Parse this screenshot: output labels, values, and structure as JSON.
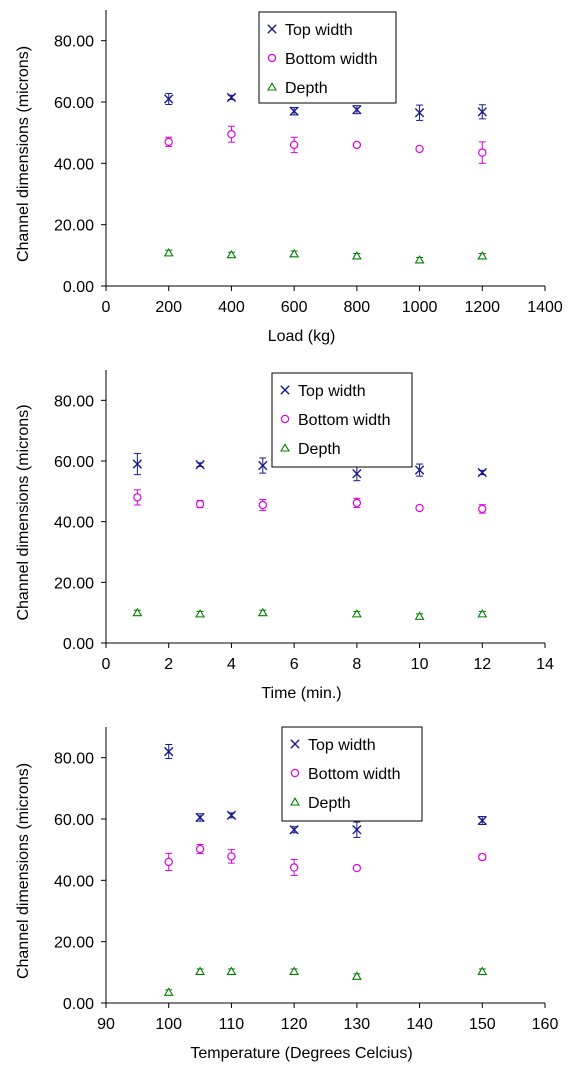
{
  "colors": {
    "top": "#1a1a8c",
    "bottom": "#e000e0",
    "depth": "#008000",
    "axis": "#000000"
  },
  "chart_data": [
    {
      "type": "scatter",
      "xlabel": "Load (kg)",
      "ylabel": "Channel dimensions (microns)",
      "xlim": [
        0,
        1400
      ],
      "ylim": [
        0,
        90
      ],
      "xticks": [
        0,
        200,
        400,
        600,
        800,
        1000,
        1200,
        1400
      ],
      "xtick_labels": [
        "0",
        "200",
        "400",
        "600",
        "800",
        "1000",
        "1200",
        "1400"
      ],
      "yticks": [
        0,
        20,
        40,
        60,
        80
      ],
      "ytick_labels": [
        "0.00",
        "20.00",
        "40.00",
        "60.00",
        "80.00"
      ],
      "legend_position": "top-right",
      "series": [
        {
          "name": "Top width",
          "marker": "x",
          "colorKey": "top",
          "x": [
            200,
            400,
            600,
            800,
            1000,
            1200
          ],
          "y": [
            61.0,
            61.5,
            57.0,
            57.5,
            56.5,
            56.8
          ],
          "err": [
            1.8,
            0.7,
            1.2,
            1.3,
            2.5,
            2.3
          ]
        },
        {
          "name": "Bottom width",
          "marker": "o",
          "colorKey": "bottom",
          "x": [
            200,
            400,
            600,
            800,
            1000,
            1200
          ],
          "y": [
            47.0,
            49.5,
            46.0,
            46.0,
            44.7,
            43.5
          ],
          "err": [
            1.5,
            2.6,
            2.5,
            0.6,
            0.4,
            3.5
          ]
        },
        {
          "name": "Depth",
          "marker": "triangle",
          "colorKey": "depth",
          "x": [
            200,
            400,
            600,
            800,
            1000,
            1200
          ],
          "y": [
            10.8,
            10.2,
            10.5,
            9.8,
            8.5,
            9.8
          ],
          "err": [
            0.9,
            0.8,
            0.9,
            0.8,
            0.8,
            0.8
          ]
        }
      ]
    },
    {
      "type": "scatter",
      "xlabel": "Time (min.)",
      "ylabel": "Channel dimensions (microns)",
      "xlim": [
        0,
        14
      ],
      "ylim": [
        0,
        90
      ],
      "xticks": [
        0,
        2,
        4,
        6,
        8,
        10,
        12,
        14
      ],
      "xtick_labels": [
        "0",
        "2",
        "4",
        "6",
        "8",
        "10",
        "12",
        "14"
      ],
      "yticks": [
        0,
        20,
        40,
        60,
        80
      ],
      "ytick_labels": [
        "0.00",
        "20.00",
        "40.00",
        "60.00",
        "80.00"
      ],
      "legend_position": "top-right",
      "series": [
        {
          "name": "Top width",
          "marker": "x",
          "colorKey": "top",
          "x": [
            1,
            3,
            5,
            8,
            10,
            12
          ],
          "y": [
            59.0,
            58.8,
            58.5,
            55.8,
            57.0,
            56.2
          ],
          "err": [
            3.5,
            0.6,
            2.5,
            2.3,
            2.0,
            0.7
          ]
        },
        {
          "name": "Bottom width",
          "marker": "o",
          "colorKey": "bottom",
          "x": [
            1,
            3,
            5,
            8,
            10,
            12
          ],
          "y": [
            48.0,
            45.8,
            45.5,
            46.2,
            44.5,
            44.2
          ],
          "err": [
            2.5,
            1.2,
            1.8,
            1.5,
            0.4,
            1.4
          ]
        },
        {
          "name": "Depth",
          "marker": "triangle",
          "colorKey": "depth",
          "x": [
            1,
            3,
            5,
            8,
            10,
            12
          ],
          "y": [
            10.0,
            9.6,
            10.0,
            9.6,
            8.8,
            9.6
          ],
          "err": [
            0.8,
            0.8,
            0.8,
            0.8,
            0.8,
            0.8
          ]
        }
      ]
    },
    {
      "type": "scatter",
      "xlabel": "Temperature (Degrees Celcius)",
      "ylabel": "Channel dimensions (microns)",
      "xlim": [
        90,
        160
      ],
      "ylim": [
        0,
        90
      ],
      "xticks": [
        90,
        100,
        110,
        120,
        130,
        140,
        150,
        160
      ],
      "xtick_labels": [
        "90",
        "100",
        "110",
        "120",
        "130",
        "140",
        "150",
        "160"
      ],
      "yticks": [
        0,
        20,
        40,
        60,
        80
      ],
      "ytick_labels": [
        "0.00",
        "20.00",
        "40.00",
        "60.00",
        "80.00"
      ],
      "legend_position": "top-right",
      "series": [
        {
          "name": "Top width",
          "marker": "x",
          "colorKey": "top",
          "x": [
            100,
            105,
            110,
            120,
            130,
            150
          ],
          "y": [
            82.0,
            60.5,
            61.2,
            56.5,
            56.5,
            59.5
          ],
          "err": [
            2.3,
            1.2,
            0.8,
            1.0,
            2.5,
            1.3
          ]
        },
        {
          "name": "Bottom width",
          "marker": "o",
          "colorKey": "bottom",
          "x": [
            100,
            105,
            110,
            120,
            130,
            150
          ],
          "y": [
            46.0,
            50.2,
            47.8,
            44.2,
            44.0,
            47.6
          ],
          "err": [
            2.8,
            1.5,
            2.2,
            2.6,
            0.4,
            0.9
          ]
        },
        {
          "name": "Depth",
          "marker": "triangle",
          "colorKey": "depth",
          "x": [
            100,
            105,
            110,
            120,
            130,
            150
          ],
          "y": [
            3.5,
            10.3,
            10.3,
            10.3,
            8.7,
            10.3
          ],
          "err": [
            0.8,
            0.8,
            0.8,
            0.8,
            0.8,
            0.8
          ]
        }
      ]
    }
  ]
}
